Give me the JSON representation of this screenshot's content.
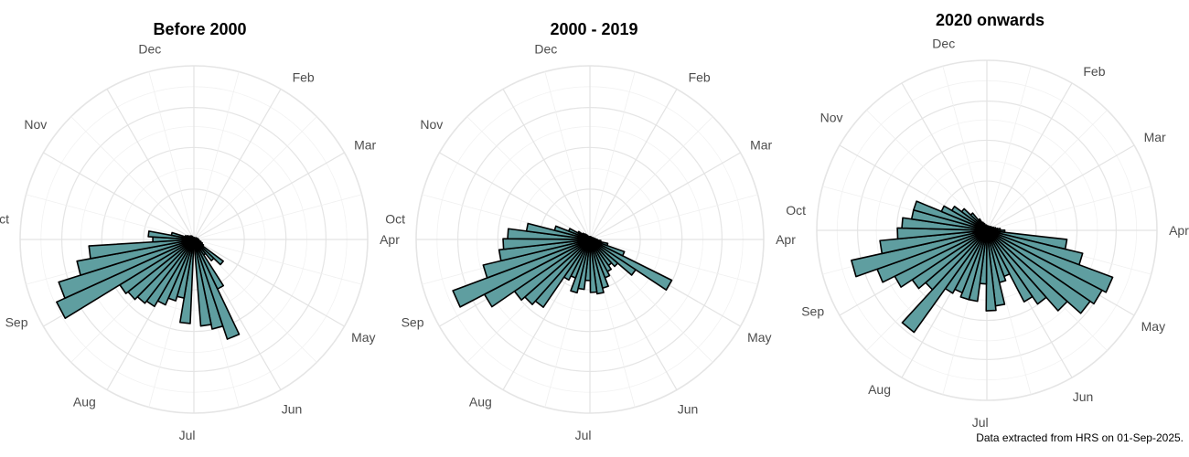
{
  "chart_data": [
    {
      "type": "polar-bar",
      "title": "Before 2000",
      "month_labels": [
        "Dec",
        "Feb",
        "Mar",
        "Apr",
        "May",
        "Jun",
        "Jul",
        "Aug",
        "Sep",
        "Oct",
        "Nov"
      ],
      "month_angles": [
        347,
        34,
        61,
        90,
        120,
        150,
        182,
        214,
        245,
        276,
        306
      ],
      "radial_scale_max": 190,
      "grid": true,
      "bars": [
        {
          "angle": 165,
          "value": 100
        },
        {
          "angle": 158,
          "value": 115
        },
        {
          "angle": 151,
          "value": 60
        },
        {
          "angle": 172,
          "value": 95
        },
        {
          "angle": 186,
          "value": 92
        },
        {
          "angle": 193,
          "value": 65
        },
        {
          "angle": 200,
          "value": 70
        },
        {
          "angle": 207,
          "value": 78
        },
        {
          "angle": 214,
          "value": 85
        },
        {
          "angle": 221,
          "value": 88
        },
        {
          "angle": 228,
          "value": 92
        },
        {
          "angle": 235,
          "value": 95
        },
        {
          "angle": 242,
          "value": 165
        },
        {
          "angle": 249,
          "value": 155
        },
        {
          "angle": 256,
          "value": 130
        },
        {
          "angle": 263,
          "value": 115
        },
        {
          "angle": 270,
          "value": 45
        },
        {
          "angle": 277,
          "value": 50
        },
        {
          "angle": 284,
          "value": 25
        },
        {
          "angle": 291,
          "value": 10
        },
        {
          "angle": 298,
          "value": 8
        },
        {
          "angle": 305,
          "value": 6
        },
        {
          "angle": 312,
          "value": 5
        },
        {
          "angle": 319,
          "value": 5
        },
        {
          "angle": 130,
          "value": 40
        },
        {
          "angle": 137,
          "value": 30
        },
        {
          "angle": 144,
          "value": 20
        },
        {
          "angle": 123,
          "value": 12
        },
        {
          "angle": 116,
          "value": 10
        },
        {
          "angle": 109,
          "value": 8
        },
        {
          "angle": 102,
          "value": 6
        },
        {
          "angle": 95,
          "value": 5
        },
        {
          "angle": 88,
          "value": 5
        },
        {
          "angle": 81,
          "value": 4
        },
        {
          "angle": 74,
          "value": 4
        },
        {
          "angle": 67,
          "value": 3
        },
        {
          "angle": 60,
          "value": 3
        },
        {
          "angle": 53,
          "value": 3
        },
        {
          "angle": 46,
          "value": 2
        },
        {
          "angle": 39,
          "value": 2
        },
        {
          "angle": 32,
          "value": 2
        },
        {
          "angle": 25,
          "value": 2
        },
        {
          "angle": 18,
          "value": 2
        },
        {
          "angle": 11,
          "value": 2
        },
        {
          "angle": 4,
          "value": 2
        },
        {
          "angle": 357,
          "value": 2
        },
        {
          "angle": 350,
          "value": 2
        },
        {
          "angle": 343,
          "value": 2
        },
        {
          "angle": 336,
          "value": 3
        },
        {
          "angle": 329,
          "value": 4
        }
      ]
    },
    {
      "type": "polar-bar",
      "title": "2000 - 2019",
      "month_labels": [
        "Dec",
        "Feb",
        "Mar",
        "Apr",
        "May",
        "Jun",
        "Jul",
        "Aug",
        "Sep",
        "Oct",
        "Nov"
      ],
      "month_angles": [
        347,
        34,
        61,
        90,
        120,
        150,
        182,
        214,
        245,
        276,
        306
      ],
      "radial_scale_max": 190,
      "grid": true,
      "bars": [
        {
          "angle": 120,
          "value": 100
        },
        {
          "angle": 127,
          "value": 60
        },
        {
          "angle": 134,
          "value": 40
        },
        {
          "angle": 141,
          "value": 35
        },
        {
          "angle": 148,
          "value": 40
        },
        {
          "angle": 155,
          "value": 45
        },
        {
          "angle": 162,
          "value": 55
        },
        {
          "angle": 169,
          "value": 60
        },
        {
          "angle": 176,
          "value": 58
        },
        {
          "angle": 183,
          "value": 45
        },
        {
          "angle": 190,
          "value": 55
        },
        {
          "angle": 197,
          "value": 60
        },
        {
          "angle": 204,
          "value": 45
        },
        {
          "angle": 211,
          "value": 50
        },
        {
          "angle": 218,
          "value": 90
        },
        {
          "angle": 225,
          "value": 95
        },
        {
          "angle": 232,
          "value": 100
        },
        {
          "angle": 239,
          "value": 130
        },
        {
          "angle": 246,
          "value": 160
        },
        {
          "angle": 253,
          "value": 120
        },
        {
          "angle": 260,
          "value": 100
        },
        {
          "angle": 267,
          "value": 95
        },
        {
          "angle": 274,
          "value": 90
        },
        {
          "angle": 281,
          "value": 70
        },
        {
          "angle": 288,
          "value": 40
        },
        {
          "angle": 295,
          "value": 25
        },
        {
          "angle": 302,
          "value": 15
        },
        {
          "angle": 309,
          "value": 10
        },
        {
          "angle": 316,
          "value": 8
        },
        {
          "angle": 323,
          "value": 6
        },
        {
          "angle": 113,
          "value": 40
        },
        {
          "angle": 106,
          "value": 20
        },
        {
          "angle": 99,
          "value": 12
        },
        {
          "angle": 92,
          "value": 8
        },
        {
          "angle": 85,
          "value": 6
        },
        {
          "angle": 78,
          "value": 5
        },
        {
          "angle": 71,
          "value": 4
        },
        {
          "angle": 64,
          "value": 4
        },
        {
          "angle": 57,
          "value": 3
        },
        {
          "angle": 50,
          "value": 3
        },
        {
          "angle": 43,
          "value": 3
        },
        {
          "angle": 36,
          "value": 3
        },
        {
          "angle": 29,
          "value": 3
        },
        {
          "angle": 22,
          "value": 3
        },
        {
          "angle": 15,
          "value": 3
        },
        {
          "angle": 8,
          "value": 3
        },
        {
          "angle": 1,
          "value": 3
        },
        {
          "angle": 354,
          "value": 3
        },
        {
          "angle": 347,
          "value": 3
        },
        {
          "angle": 340,
          "value": 3
        },
        {
          "angle": 333,
          "value": 4
        }
      ]
    },
    {
      "type": "polar-bar",
      "title": "2020 onwards",
      "month_labels": [
        "Dec",
        "Feb",
        "Mar",
        "Apr",
        "May",
        "Jun",
        "Jul",
        "Aug",
        "Sep",
        "Oct",
        "Nov"
      ],
      "month_angles": [
        347,
        34,
        61,
        90,
        120,
        150,
        182,
        214,
        245,
        276,
        306
      ],
      "radial_scale_max": 190,
      "grid": true,
      "bars": [
        {
          "angle": 93,
          "value": 20
        },
        {
          "angle": 100,
          "value": 90
        },
        {
          "angle": 107,
          "value": 110
        },
        {
          "angle": 114,
          "value": 150
        },
        {
          "angle": 121,
          "value": 145
        },
        {
          "angle": 128,
          "value": 140
        },
        {
          "angle": 135,
          "value": 120
        },
        {
          "angle": 142,
          "value": 100
        },
        {
          "angle": 149,
          "value": 90
        },
        {
          "angle": 156,
          "value": 55
        },
        {
          "angle": 163,
          "value": 60
        },
        {
          "angle": 170,
          "value": 85
        },
        {
          "angle": 177,
          "value": 90
        },
        {
          "angle": 184,
          "value": 60
        },
        {
          "angle": 191,
          "value": 80
        },
        {
          "angle": 198,
          "value": 80
        },
        {
          "angle": 205,
          "value": 75
        },
        {
          "angle": 212,
          "value": 80
        },
        {
          "angle": 219,
          "value": 140
        },
        {
          "angle": 226,
          "value": 90
        },
        {
          "angle": 233,
          "value": 100
        },
        {
          "angle": 240,
          "value": 115
        },
        {
          "angle": 247,
          "value": 130
        },
        {
          "angle": 254,
          "value": 155
        },
        {
          "angle": 261,
          "value": 120
        },
        {
          "angle": 268,
          "value": 100
        },
        {
          "angle": 275,
          "value": 95
        },
        {
          "angle": 282,
          "value": 85
        },
        {
          "angle": 289,
          "value": 85
        },
        {
          "angle": 296,
          "value": 55
        },
        {
          "angle": 303,
          "value": 45
        },
        {
          "angle": 310,
          "value": 35
        },
        {
          "angle": 317,
          "value": 25
        },
        {
          "angle": 324,
          "value": 15
        },
        {
          "angle": 331,
          "value": 10
        },
        {
          "angle": 338,
          "value": 8
        },
        {
          "angle": 345,
          "value": 6
        },
        {
          "angle": 352,
          "value": 6
        },
        {
          "angle": 359,
          "value": 5
        },
        {
          "angle": 6,
          "value": 5
        },
        {
          "angle": 13,
          "value": 5
        },
        {
          "angle": 20,
          "value": 5
        },
        {
          "angle": 27,
          "value": 5
        },
        {
          "angle": 34,
          "value": 5
        },
        {
          "angle": 41,
          "value": 5
        },
        {
          "angle": 48,
          "value": 6
        },
        {
          "angle": 55,
          "value": 6
        },
        {
          "angle": 62,
          "value": 7
        },
        {
          "angle": 69,
          "value": 8
        },
        {
          "angle": 76,
          "value": 10
        },
        {
          "angle": 83,
          "value": 12
        },
        {
          "angle": 86,
          "value": 15
        }
      ]
    }
  ],
  "style": {
    "bar_fill": "#5f9ea0",
    "bar_stroke": "#000000",
    "grid_color": "#e5e5e5"
  },
  "caption": "Data extracted from HRS on 01-Sep-2025."
}
